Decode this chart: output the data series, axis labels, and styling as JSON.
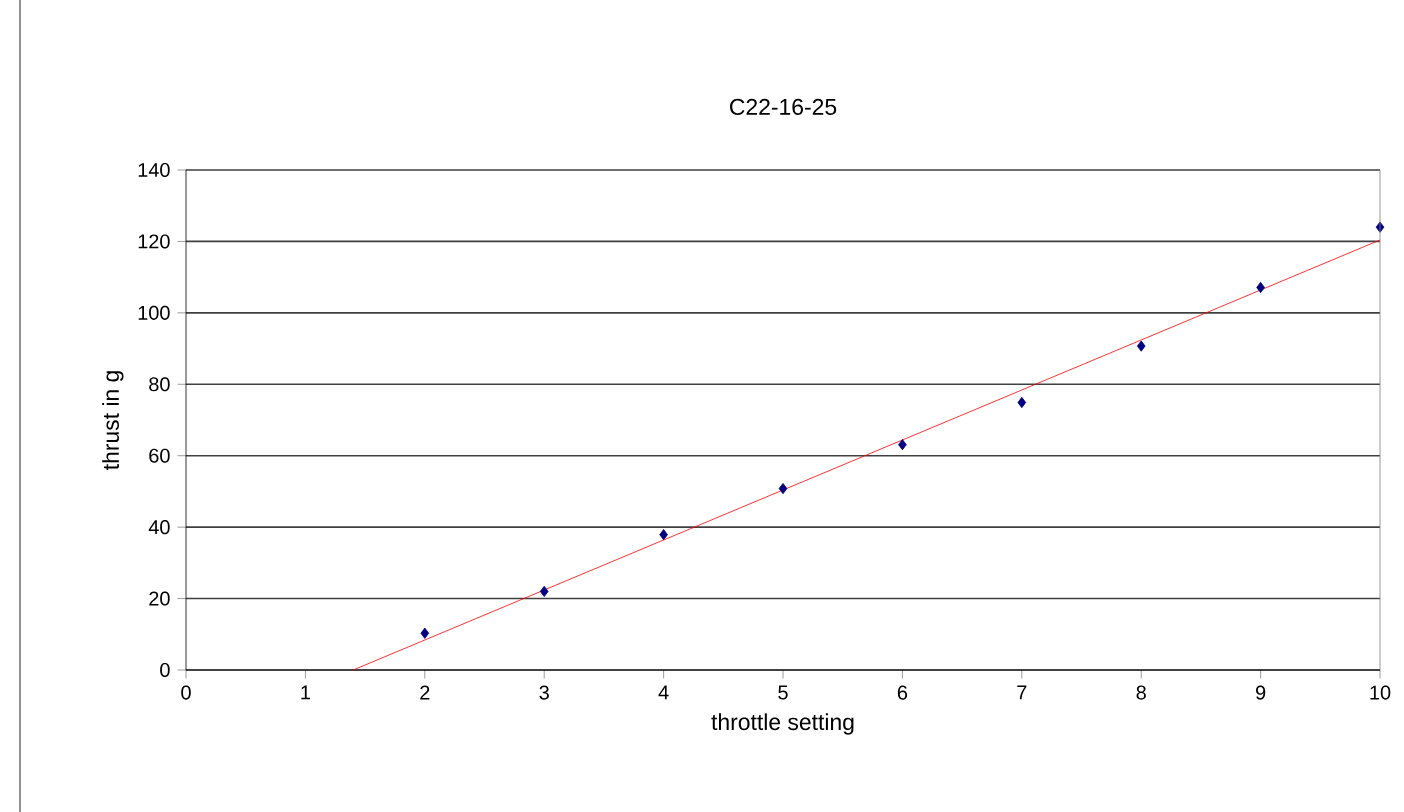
{
  "chart_data": {
    "type": "scatter",
    "title": "C22-16-25",
    "xlabel": "throttle setting",
    "ylabel": "thrust in g",
    "xlim": [
      0,
      10
    ],
    "ylim": [
      0,
      140
    ],
    "xticks": [
      0,
      1,
      2,
      3,
      4,
      5,
      6,
      7,
      8,
      9,
      10
    ],
    "yticks": [
      0,
      20,
      40,
      60,
      80,
      100,
      120,
      140
    ],
    "grid": "y",
    "marker": "diamond",
    "series": [
      {
        "color": "#000080",
        "x": [
          2,
          3,
          4,
          5,
          6,
          7,
          8,
          9,
          10
        ],
        "values": [
          10.3,
          22,
          37.9,
          50.8,
          63.1,
          74.9,
          90.7,
          107.1,
          124
        ]
      },
      {
        "type": "line",
        "color": "#ff0000",
        "marker": "none",
        "line_style": "solid",
        "x": [
          1.4,
          10
        ],
        "values": [
          0,
          120.4
        ]
      }
    ]
  }
}
